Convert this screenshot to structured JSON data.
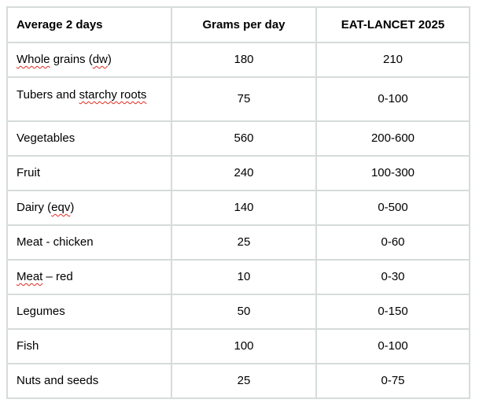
{
  "colors": {
    "table_border": "#d6dcd9",
    "spellcheck_underline": "#e02b20",
    "text": "#000000",
    "background": "#ffffff"
  },
  "table": {
    "headers": [
      "Average 2 days",
      "Grams per day",
      "EAT-LANCET 2025"
    ],
    "rows": [
      {
        "label_parts": [
          {
            "text": "Whole",
            "misspelled": true
          },
          {
            "text": " grains (",
            "misspelled": false
          },
          {
            "text": "dw",
            "misspelled": true
          },
          {
            "text": ")",
            "misspelled": false
          }
        ],
        "grams": "180",
        "eat_lancet": "210",
        "tall": false
      },
      {
        "label_parts": [
          {
            "text": "Tubers and ",
            "misspelled": false
          },
          {
            "text": "starchy roots",
            "misspelled": true
          }
        ],
        "grams": "75",
        "eat_lancet": "0-100",
        "tall": true
      },
      {
        "label_parts": [
          {
            "text": "Vegetables",
            "misspelled": false
          }
        ],
        "grams": "560",
        "eat_lancet": "200-600",
        "tall": false
      },
      {
        "label_parts": [
          {
            "text": "Fruit",
            "misspelled": false
          }
        ],
        "grams": "240",
        "eat_lancet": "100-300",
        "tall": false
      },
      {
        "label_parts": [
          {
            "text": "Dairy (",
            "misspelled": false
          },
          {
            "text": "eqv",
            "misspelled": true
          },
          {
            "text": ")",
            "misspelled": false
          }
        ],
        "grams": "140",
        "eat_lancet": "0-500",
        "tall": false
      },
      {
        "label_parts": [
          {
            "text": "Meat - chicken",
            "misspelled": false
          }
        ],
        "grams": "25",
        "eat_lancet": "0-60",
        "tall": false
      },
      {
        "label_parts": [
          {
            "text": "Meat",
            "misspelled": true
          },
          {
            "text": " – red",
            "misspelled": false
          }
        ],
        "grams": "10",
        "eat_lancet": "0-30",
        "tall": false
      },
      {
        "label_parts": [
          {
            "text": "Legumes",
            "misspelled": false
          }
        ],
        "grams": "50",
        "eat_lancet": "0-150",
        "tall": false
      },
      {
        "label_parts": [
          {
            "text": "Fish",
            "misspelled": false
          }
        ],
        "grams": "100",
        "eat_lancet": "0-100",
        "tall": false
      },
      {
        "label_parts": [
          {
            "text": "Nuts and seeds",
            "misspelled": false
          }
        ],
        "grams": "25",
        "eat_lancet": "0-75",
        "tall": false
      }
    ]
  }
}
